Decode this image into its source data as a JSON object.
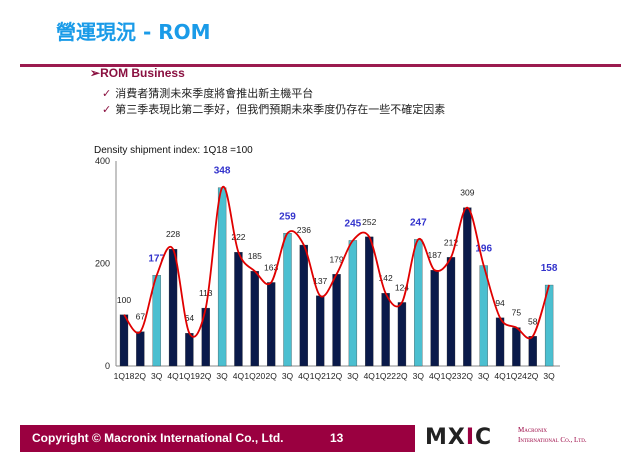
{
  "title": "營運現況 - ROM",
  "section": "ROM Business",
  "bullets": [
    "消費者猜測未來季度將會推出新主機平台",
    "第三季表現比第二季好，但我們預期未來季度仍存在一些不確定因素"
  ],
  "check_icon": "✓",
  "arrow_icon": "➢",
  "footer": {
    "copyright": "Copyright © Macronix International Co., Ltd.",
    "page": "13",
    "logo": "MXIC",
    "company_line1": "Macronix",
    "company_line2": "International Co., Ltd."
  },
  "chart_data": {
    "type": "bar",
    "title": "Density shipment index: 1Q18 =100",
    "categories": [
      "1Q18",
      "2Q",
      "3Q",
      "4Q",
      "1Q19",
      "2Q",
      "3Q",
      "4Q",
      "1Q20",
      "2Q",
      "3Q",
      "4Q",
      "1Q21",
      "2Q",
      "3Q",
      "4Q",
      "1Q22",
      "2Q",
      "3Q",
      "4Q",
      "1Q23",
      "2Q",
      "3Q",
      "4Q",
      "1Q24",
      "2Q",
      "3Q"
    ],
    "values": [
      100,
      67,
      177,
      228,
      64,
      113,
      348,
      222,
      185,
      163,
      259,
      236,
      137,
      179,
      245,
      252,
      142,
      124,
      247,
      187,
      212,
      309,
      196,
      94,
      75,
      58,
      158
    ],
    "ylim": [
      0,
      400
    ],
    "yticks": [
      0,
      200,
      400
    ],
    "trend_line": "smoothed red line through bar tops",
    "colors": {
      "bar": "#0a1a4a",
      "bar_3q": "#4bbfd0",
      "label_3q": "#3333cc",
      "trend": "#e00000"
    }
  }
}
